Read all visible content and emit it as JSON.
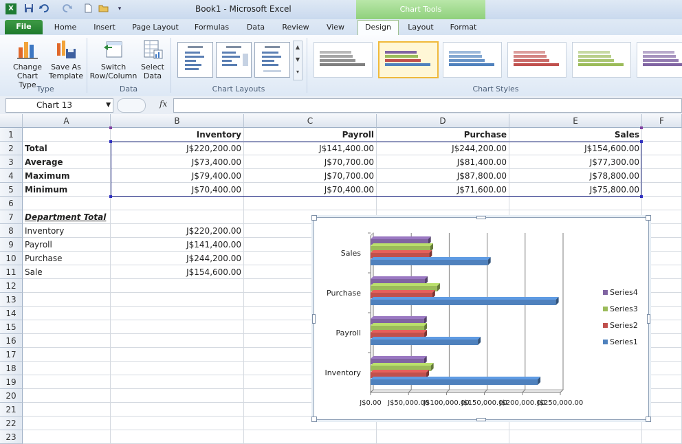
{
  "titlebar": {
    "title": "Book1  -  Microsoft Excel",
    "context_title": "Chart Tools",
    "quick_access": [
      "excel-logo-icon",
      "save-icon",
      "undo-icon",
      "redo-icon",
      "new-icon",
      "open-icon",
      "customize-icon"
    ]
  },
  "tabs": [
    {
      "label": "File"
    },
    {
      "label": "Home"
    },
    {
      "label": "Insert"
    },
    {
      "label": "Page Layout"
    },
    {
      "label": "Formulas"
    },
    {
      "label": "Data"
    },
    {
      "label": "Review"
    },
    {
      "label": "View"
    },
    {
      "label": "Design"
    },
    {
      "label": "Layout"
    },
    {
      "label": "Format"
    }
  ],
  "ribbon": {
    "change_chart_type": "Change Chart Type",
    "save_as_template": "Save As Template",
    "group_type": "Type",
    "switch_row_column": "Switch Row/Column",
    "select_data": "Select Data",
    "group_data": "Data",
    "group_chart_layouts": "Chart Layouts",
    "group_chart_styles": "Chart Styles",
    "style_colors": [
      "#7f7f7f",
      "#4f81bd",
      "#4f81bd",
      "#c0504d",
      "#9bbb59",
      "#8064a2"
    ]
  },
  "formula_bar": {
    "name_box": "Chart 13",
    "fx": "fx",
    "value": ""
  },
  "columns": [
    "A",
    "B",
    "C",
    "D",
    "E",
    "F"
  ],
  "rows": [
    "1",
    "2",
    "3",
    "4",
    "5",
    "6",
    "7",
    "8",
    "9",
    "10",
    "11",
    "12",
    "13",
    "14",
    "15",
    "16",
    "17",
    "18",
    "19",
    "20",
    "21",
    "22",
    "23"
  ],
  "cells": {
    "header": [
      "",
      "Inventory",
      "Payroll",
      "Purchase",
      "Sales"
    ],
    "stats": [
      [
        "Total",
        "J$220,200.00",
        "J$141,400.00",
        "J$244,200.00",
        "J$154,600.00"
      ],
      [
        "Average",
        "J$73,400.00",
        "J$70,700.00",
        "J$81,400.00",
        "J$77,300.00"
      ],
      [
        "Maximum",
        "J$79,400.00",
        "J$70,700.00",
        "J$87,800.00",
        "J$78,800.00"
      ],
      [
        "Minimum",
        "J$70,400.00",
        "J$70,400.00",
        "J$71,600.00",
        "J$75,800.00"
      ]
    ],
    "dept_title": "Department Total",
    "dept": [
      [
        "Inventory",
        "J$220,200.00"
      ],
      [
        "Payroll",
        "J$141,400.00"
      ],
      [
        "Purchase",
        "J$244,200.00"
      ],
      [
        "Sale",
        "J$154,600.00"
      ]
    ]
  },
  "chart_data": {
    "type": "bar",
    "orientation": "horizontal",
    "style": "3d-clustered",
    "categories": [
      "Inventory",
      "Payroll",
      "Purchase",
      "Sales"
    ],
    "series": [
      {
        "name": "Series1",
        "color": "#4f81bd",
        "values": [
          220200,
          141400,
          244200,
          154600
        ]
      },
      {
        "name": "Series2",
        "color": "#c0504d",
        "values": [
          73400,
          70700,
          81400,
          77300
        ]
      },
      {
        "name": "Series3",
        "color": "#9bbb59",
        "values": [
          79400,
          70700,
          87800,
          78800
        ]
      },
      {
        "name": "Series4",
        "color": "#8064a2",
        "values": [
          70400,
          70400,
          71600,
          75800
        ]
      }
    ],
    "xticks": [
      "J$0.00",
      "J$50,000.00",
      "J$100,000.00",
      "J$150,000.00",
      "J$200,000.00",
      "J$250,000.00"
    ],
    "xlim": [
      0,
      250000
    ],
    "legend_position": "right",
    "grid": true
  }
}
